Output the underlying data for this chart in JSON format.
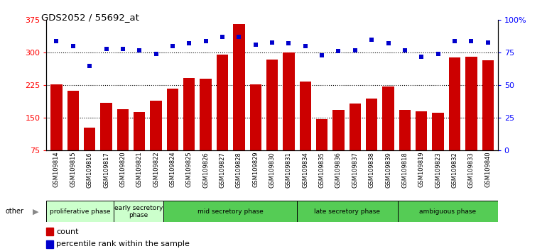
{
  "title": "GDS2052 / 55692_at",
  "samples": [
    "GSM109814",
    "GSM109815",
    "GSM109816",
    "GSM109817",
    "GSM109820",
    "GSM109821",
    "GSM109822",
    "GSM109824",
    "GSM109825",
    "GSM109826",
    "GSM109827",
    "GSM109828",
    "GSM109829",
    "GSM109830",
    "GSM109831",
    "GSM109834",
    "GSM109835",
    "GSM109836",
    "GSM109837",
    "GSM109838",
    "GSM109839",
    "GSM109818",
    "GSM109819",
    "GSM109823",
    "GSM109832",
    "GSM109833",
    "GSM109840"
  ],
  "counts": [
    228,
    212,
    127,
    185,
    170,
    163,
    190,
    218,
    242,
    240,
    295,
    365,
    228,
    285,
    300,
    233,
    148,
    168,
    183,
    195,
    222,
    168,
    165,
    162,
    289,
    291,
    283
  ],
  "percentiles": [
    84,
    80,
    65,
    78,
    78,
    77,
    74,
    80,
    82,
    84,
    87,
    87,
    81,
    83,
    82,
    80,
    73,
    76,
    77,
    85,
    82,
    77,
    72,
    74,
    84,
    84,
    83
  ],
  "ylim_left": [
    75,
    375
  ],
  "ylim_right": [
    0,
    100
  ],
  "yticks_left": [
    75,
    150,
    225,
    300,
    375
  ],
  "yticks_right": [
    0,
    25,
    50,
    75,
    100
  ],
  "bar_color": "#cc0000",
  "dot_color": "#0000cc",
  "bg_color": "#ffffff",
  "phase_labels": [
    "proliferative phase",
    "early secretory\nphase",
    "mid secretory phase",
    "late secretory phase",
    "ambiguous phase"
  ],
  "phase_starts": [
    0,
    4,
    7,
    15,
    21
  ],
  "phase_ends": [
    4,
    7,
    15,
    21,
    27
  ],
  "phase_colors": [
    "#ccffcc",
    "#ccffcc",
    "#55cc55",
    "#55cc55",
    "#55cc55"
  ]
}
